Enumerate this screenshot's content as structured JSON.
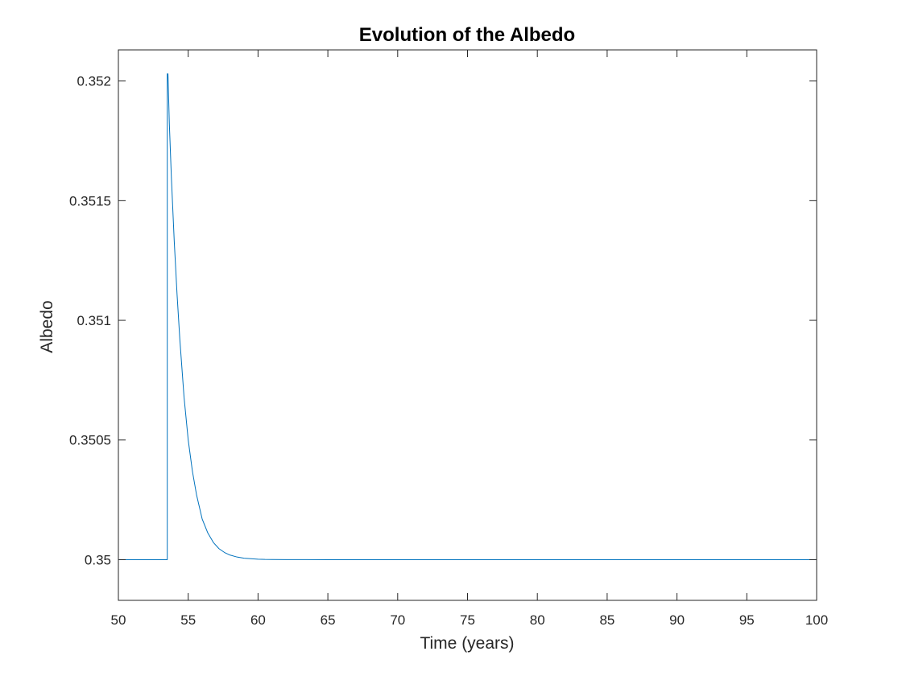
{
  "chart_data": {
    "type": "line",
    "title": "Evolution of the Albedo",
    "xlabel": "Time (years)",
    "ylabel": "Albedo",
    "xlim": [
      50,
      100
    ],
    "ylim": [
      0.34983,
      0.35213
    ],
    "x_ticks": [
      50,
      55,
      60,
      65,
      70,
      75,
      80,
      85,
      90,
      95,
      100
    ],
    "x_tick_labels": [
      "50",
      "55",
      "60",
      "65",
      "70",
      "75",
      "80",
      "85",
      "90",
      "95",
      "100"
    ],
    "y_ticks": [
      0.35,
      0.3505,
      0.351,
      0.3515,
      0.352
    ],
    "y_tick_labels": [
      "0.35",
      "0.3505",
      "0.351",
      "0.3515",
      "0.352"
    ],
    "grid": false,
    "box": true,
    "series": [
      {
        "color": "#0072BD",
        "x": [
          50,
          53.5,
          53.5,
          53.55,
          53.65,
          53.8,
          54.0,
          54.2,
          54.4,
          54.7,
          55.0,
          55.3,
          55.6,
          56.0,
          56.4,
          56.8,
          57.2,
          57.6,
          58.0,
          58.5,
          59.0,
          59.5,
          60.0,
          60.5,
          61.0,
          62.0,
          65.0,
          70.0,
          80.0,
          90.0,
          100.0
        ],
        "y": [
          0.35,
          0.35,
          0.35203,
          0.35203,
          0.35182,
          0.35159,
          0.35133,
          0.35111,
          0.35092,
          0.35068,
          0.3505,
          0.35037,
          0.35027,
          0.35017,
          0.350112,
          0.350072,
          0.350046,
          0.35003,
          0.350019,
          0.350011,
          0.350006,
          0.350004,
          0.350002,
          0.350001,
          0.3500008,
          0.3500003,
          0.35,
          0.35,
          0.35,
          0.35,
          0.35
        ]
      }
    ]
  }
}
